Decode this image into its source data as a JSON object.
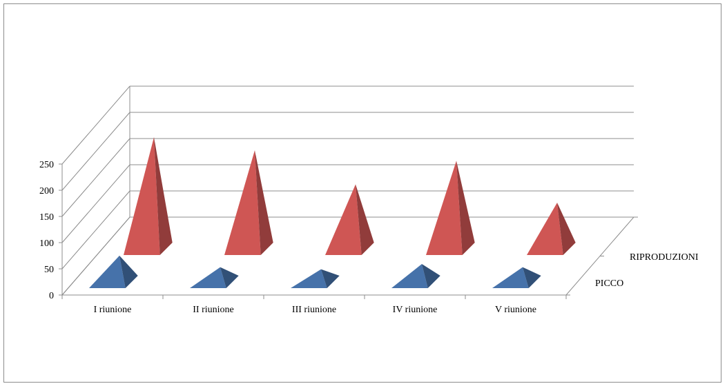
{
  "chart_data": {
    "type": "bar",
    "subtype": "3d-pyramid",
    "categories": [
      "I riunione",
      "II riunione",
      "III riunione",
      "IV riunione",
      "V riunione"
    ],
    "series": [
      {
        "name": "PICCO",
        "values": [
          62,
          40,
          36,
          46,
          40
        ],
        "color": "#4672aa"
      },
      {
        "name": "RIPRODUZIONI",
        "values": [
          225,
          200,
          135,
          180,
          100
        ],
        "color": "#cf5654"
      }
    ],
    "ylim": [
      0,
      250
    ],
    "yticks": [
      "0",
      "50",
      "100",
      "150",
      "200",
      "250"
    ],
    "grid": true,
    "legend": "none"
  }
}
